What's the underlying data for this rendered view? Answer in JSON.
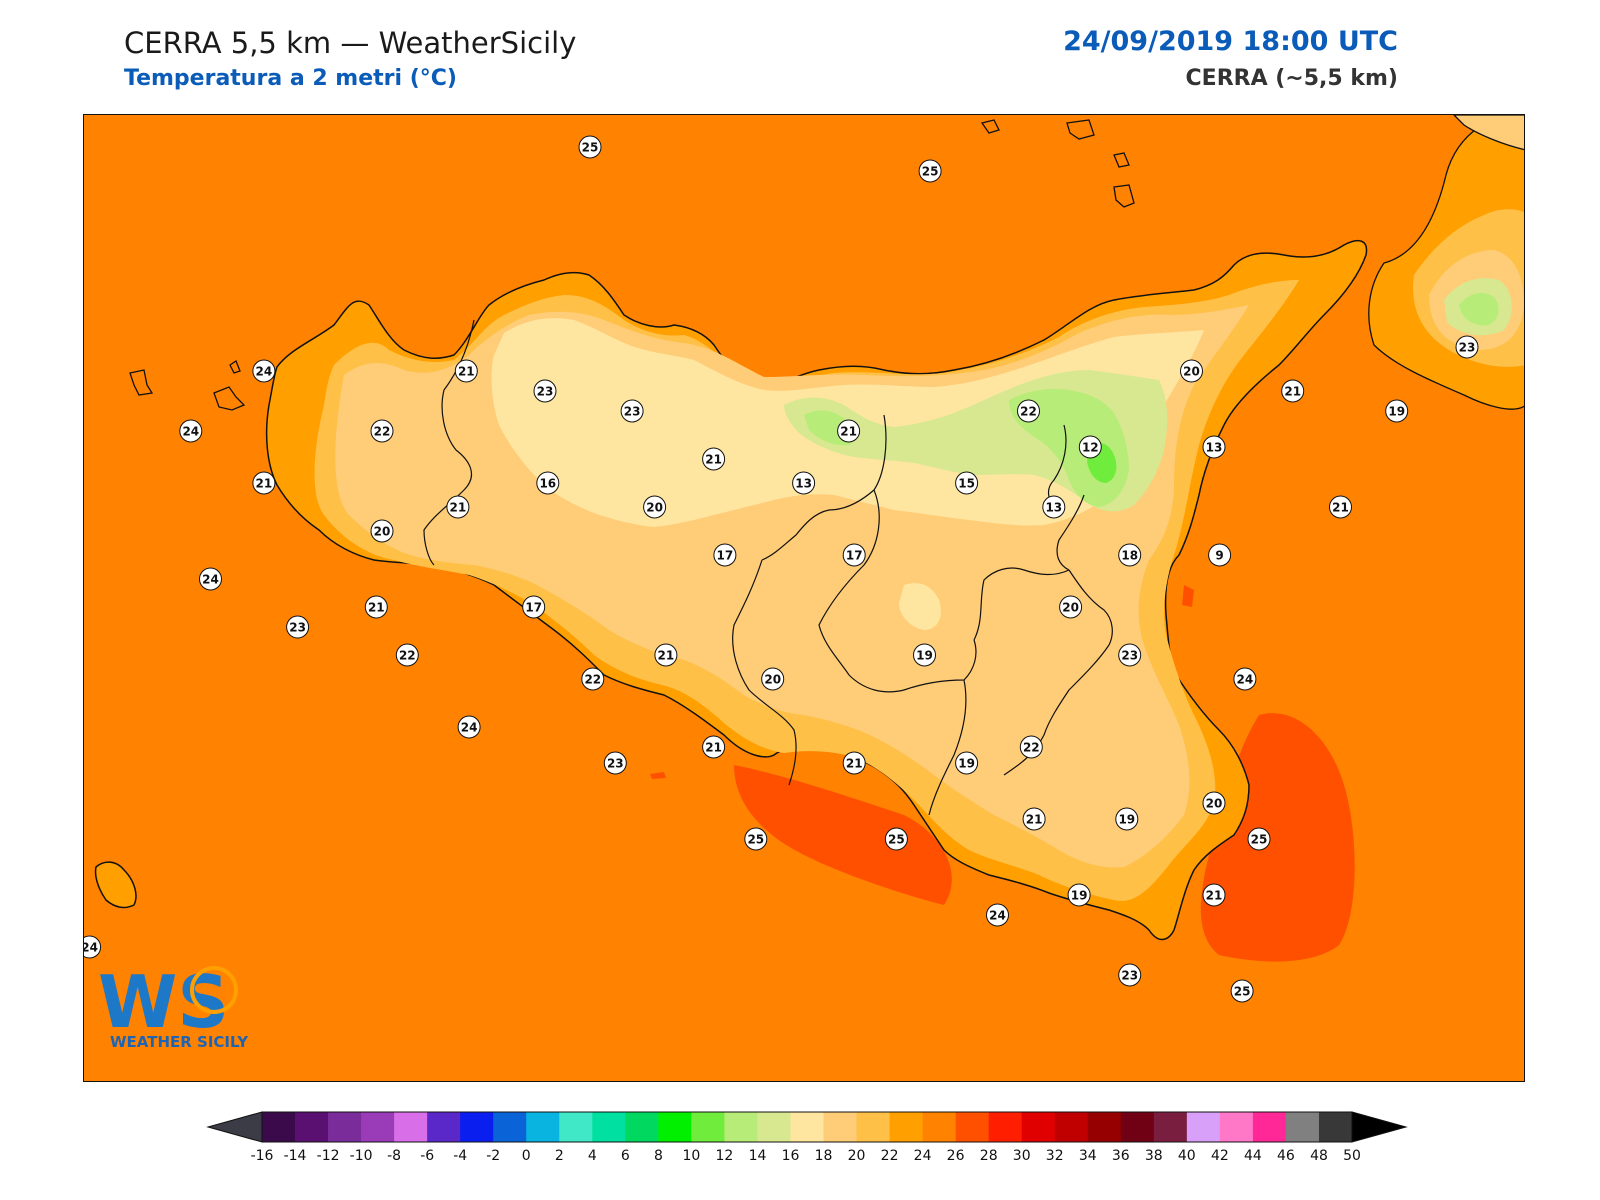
{
  "header": {
    "title": "CERRA 5,5 km — WeatherSicily",
    "subtitle": "Temperatura a 2 metri (°C)",
    "datetime": "24/09/2019 18:00 UTC",
    "model": "CERRA (~5,5 km)"
  },
  "logo": {
    "letters": "WS",
    "text": "WEATHER SICILY"
  },
  "colors": {
    "sea": "#ff8200",
    "warm_sea": "#ff5000",
    "coast": "#111111",
    "bg": "#ffffff"
  },
  "colorbar": {
    "ticks": [
      "-16",
      "-14",
      "-12",
      "-10",
      "-8",
      "-6",
      "-4",
      "-2",
      "0",
      "2",
      "4",
      "6",
      "8",
      "10",
      "12",
      "14",
      "16",
      "18",
      "20",
      "22",
      "24",
      "26",
      "28",
      "30",
      "32",
      "34",
      "36",
      "38",
      "40",
      "42",
      "44",
      "46",
      "48",
      "50"
    ],
    "colors": [
      "#3a0a4a",
      "#5a1070",
      "#7a2c9a",
      "#9a3cb8",
      "#d86ee8",
      "#5a28c8",
      "#0a1ef0",
      "#0a64d8",
      "#0ab4e0",
      "#40e8c8",
      "#00e0a0",
      "#00d860",
      "#00f000",
      "#70ec3c",
      "#b8ec78",
      "#d8e890",
      "#ffe6a0",
      "#ffcc78",
      "#ffc048",
      "#ffa000",
      "#ff8200",
      "#ff5000",
      "#ff1e00",
      "#e00000",
      "#c00000",
      "#960000",
      "#700014",
      "#7a1e40",
      "#d8a0f8",
      "#ff78c8",
      "#ff2896",
      "#808080",
      "#383838"
    ],
    "under_color": "#3c3c46",
    "over_color": "#000000"
  },
  "stations": [
    {
      "id": "s1",
      "value": "25",
      "lon": 13.72,
      "lat": 38.77
    },
    {
      "id": "s2",
      "value": "25",
      "lon": 14.93,
      "lat": 38.71
    },
    {
      "id": "s3",
      "value": "24",
      "lon": 12.56,
      "lat": 38.21
    },
    {
      "id": "s4",
      "value": "21",
      "lon": 13.28,
      "lat": 38.21
    },
    {
      "id": "s5",
      "value": "23",
      "lon": 13.56,
      "lat": 38.16
    },
    {
      "id": "s6",
      "value": "23",
      "lon": 13.87,
      "lat": 38.11
    },
    {
      "id": "s7",
      "value": "24",
      "lon": 12.3,
      "lat": 38.06
    },
    {
      "id": "s8",
      "value": "22",
      "lon": 12.98,
      "lat": 38.06
    },
    {
      "id": "s9",
      "value": "21",
      "lon": 12.56,
      "lat": 37.93
    },
    {
      "id": "s10",
      "value": "16",
      "lon": 13.57,
      "lat": 37.93
    },
    {
      "id": "s11",
      "value": "21",
      "lon": 13.25,
      "lat": 37.87
    },
    {
      "id": "s12",
      "value": "20",
      "lon": 13.95,
      "lat": 37.87
    },
    {
      "id": "s13",
      "value": "20",
      "lon": 12.98,
      "lat": 37.81
    },
    {
      "id": "s14",
      "value": "21",
      "lon": 14.16,
      "lat": 37.99
    },
    {
      "id": "s15",
      "value": "21",
      "lon": 14.64,
      "lat": 38.06
    },
    {
      "id": "s16",
      "value": "13",
      "lon": 14.48,
      "lat": 37.93
    },
    {
      "id": "s17",
      "value": "15",
      "lon": 15.06,
      "lat": 37.93
    },
    {
      "id": "s18",
      "value": "17",
      "lon": 14.2,
      "lat": 37.75
    },
    {
      "id": "s19",
      "value": "17",
      "lon": 14.66,
      "lat": 37.75
    },
    {
      "id": "s20",
      "value": "22",
      "lon": 15.28,
      "lat": 38.11
    },
    {
      "id": "s21",
      "value": "20",
      "lon": 15.86,
      "lat": 38.21
    },
    {
      "id": "s22",
      "value": "21",
      "lon": 16.22,
      "lat": 38.16
    },
    {
      "id": "s23",
      "value": "23",
      "lon": 16.84,
      "lat": 38.27
    },
    {
      "id": "s24",
      "value": "19",
      "lon": 16.59,
      "lat": 38.11
    },
    {
      "id": "s25",
      "value": "12",
      "lon": 15.5,
      "lat": 38.02
    },
    {
      "id": "s26",
      "value": "13",
      "lon": 15.94,
      "lat": 38.02
    },
    {
      "id": "s27",
      "value": "13",
      "lon": 15.37,
      "lat": 37.87
    },
    {
      "id": "s28",
      "value": "21",
      "lon": 16.39,
      "lat": 37.87
    },
    {
      "id": "s29",
      "value": "18",
      "lon": 15.64,
      "lat": 37.75
    },
    {
      "id": "s30",
      "value": "9",
      "lon": 15.96,
      "lat": 37.75
    },
    {
      "id": "s31",
      "value": "24",
      "lon": 12.37,
      "lat": 37.69
    },
    {
      "id": "s32",
      "value": "21",
      "lon": 12.96,
      "lat": 37.62
    },
    {
      "id": "s33",
      "value": "17",
      "lon": 13.52,
      "lat": 37.62
    },
    {
      "id": "s34",
      "value": "20",
      "lon": 15.43,
      "lat": 37.62
    },
    {
      "id": "s35",
      "value": "23",
      "lon": 12.68,
      "lat": 37.57
    },
    {
      "id": "s36",
      "value": "22",
      "lon": 13.07,
      "lat": 37.5
    },
    {
      "id": "s37",
      "value": "21",
      "lon": 13.99,
      "lat": 37.5
    },
    {
      "id": "s38",
      "value": "20",
      "lon": 14.37,
      "lat": 37.44
    },
    {
      "id": "s39",
      "value": "19",
      "lon": 14.91,
      "lat": 37.5
    },
    {
      "id": "s40",
      "value": "23",
      "lon": 15.64,
      "lat": 37.5
    },
    {
      "id": "s41",
      "value": "24",
      "lon": 16.05,
      "lat": 37.44
    },
    {
      "id": "s42",
      "value": "22",
      "lon": 13.73,
      "lat": 37.44
    },
    {
      "id": "s43",
      "value": "24",
      "lon": 13.29,
      "lat": 37.32
    },
    {
      "id": "s44",
      "value": "22",
      "lon": 15.29,
      "lat": 37.27
    },
    {
      "id": "s45",
      "value": "21",
      "lon": 14.16,
      "lat": 37.27
    },
    {
      "id": "s46",
      "value": "21",
      "lon": 14.66,
      "lat": 37.23
    },
    {
      "id": "s47",
      "value": "19",
      "lon": 15.06,
      "lat": 37.23
    },
    {
      "id": "s48",
      "value": "23",
      "lon": 13.81,
      "lat": 37.23
    },
    {
      "id": "s49",
      "value": "20",
      "lon": 15.94,
      "lat": 37.13
    },
    {
      "id": "s50",
      "value": "21",
      "lon": 15.3,
      "lat": 37.09
    },
    {
      "id": "s51",
      "value": "19",
      "lon": 15.63,
      "lat": 37.09
    },
    {
      "id": "s52",
      "value": "25",
      "lon": 14.31,
      "lat": 37.04
    },
    {
      "id": "s53",
      "value": "25",
      "lon": 14.81,
      "lat": 37.04
    },
    {
      "id": "s54",
      "value": "25",
      "lon": 16.1,
      "lat": 37.04
    },
    {
      "id": "s55",
      "value": "19",
      "lon": 15.46,
      "lat": 36.9
    },
    {
      "id": "s56",
      "value": "21",
      "lon": 15.94,
      "lat": 36.9
    },
    {
      "id": "s57",
      "value": "24",
      "lon": 15.17,
      "lat": 36.85
    },
    {
      "id": "s58",
      "value": "24",
      "lon": 11.94,
      "lat": 36.77
    },
    {
      "id": "s59",
      "value": "23",
      "lon": 15.64,
      "lat": 36.7
    },
    {
      "id": "s60",
      "value": "25",
      "lon": 16.04,
      "lat": 36.66
    }
  ]
}
